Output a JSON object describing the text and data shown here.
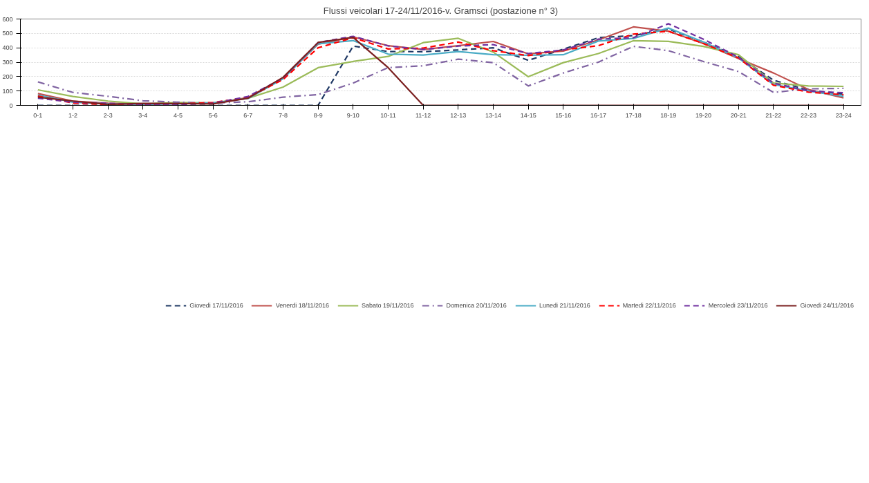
{
  "chart_data": {
    "type": "line",
    "title": "Flussi veicolari 17-24/11/2016-v. Gramsci (postazione n° 3)",
    "categories": [
      "0-1",
      "1-2",
      "2-3",
      "3-4",
      "4-5",
      "5-6",
      "6-7",
      "7-8",
      "8-9",
      "9-10",
      "10-11",
      "11-12",
      "12-13",
      "13-14",
      "14-15",
      "15-16",
      "16-17",
      "17-18",
      "18-19",
      "19-20",
      "20-21",
      "21-22",
      "22-23",
      "23-24"
    ],
    "ylim": [
      0,
      600
    ],
    "yticks": [
      0,
      100,
      200,
      300,
      400,
      500,
      600
    ],
    "grid": "y",
    "legend": "bottom",
    "marker": "none",
    "series": [
      {
        "name": "Giovedi 17/11/2016",
        "color": "#1f3864",
        "line_style": "dashed",
        "values": [
          0,
          0,
          0,
          0,
          0,
          0,
          0,
          0,
          0,
          412,
          374,
          373,
          385,
          400,
          313,
          390,
          470,
          485,
          530,
          440,
          340,
          175,
          105,
          78
        ]
      },
      {
        "name": "Venerdi 18/11/2016",
        "color": "#c0504d",
        "line_style": "solid",
        "values": [
          82,
          30,
          15,
          12,
          12,
          12,
          55,
          190,
          425,
          475,
          415,
          388,
          415,
          444,
          358,
          377,
          455,
          545,
          515,
          430,
          325,
          225,
          110,
          52
        ]
      },
      {
        "name": "Sabato 19/11/2016",
        "color": "#9bbb59",
        "line_style": "solid",
        "values": [
          108,
          62,
          30,
          10,
          20,
          18,
          50,
          127,
          262,
          305,
          340,
          436,
          466,
          370,
          199,
          297,
          360,
          449,
          445,
          410,
          352,
          155,
          135,
          132
        ]
      },
      {
        "name": "Domenica 20/11/2016",
        "color": "#8064a2",
        "line_style": "dashdot",
        "values": [
          163,
          90,
          63,
          32,
          22,
          16,
          25,
          57,
          75,
          155,
          262,
          275,
          321,
          297,
          135,
          225,
          300,
          410,
          380,
          305,
          235,
          90,
          115,
          118
        ]
      },
      {
        "name": "Lunedi 21/11/2016",
        "color": "#4bacc6",
        "line_style": "solid",
        "values": [
          72,
          22,
          10,
          7,
          10,
          18,
          48,
          185,
          428,
          450,
          356,
          350,
          374,
          352,
          348,
          352,
          447,
          465,
          537,
          440,
          330,
          145,
          100,
          63
        ]
      },
      {
        "name": "Martedi 22/11/2016",
        "color": "#ff0000",
        "line_style": "dashed",
        "values": [
          65,
          16,
          6,
          5,
          10,
          20,
          55,
          180,
          400,
          470,
          392,
          398,
          440,
          380,
          346,
          385,
          415,
          495,
          515,
          430,
          330,
          140,
          92,
          74
        ]
      },
      {
        "name": "Mercoledi 23/11/2016",
        "color": "#7030a0",
        "line_style": "dashed",
        "values": [
          50,
          22,
          15,
          3,
          5,
          15,
          62,
          190,
          437,
          480,
          413,
          388,
          412,
          422,
          360,
          385,
          460,
          470,
          567,
          460,
          335,
          155,
          100,
          88
        ]
      },
      {
        "name": "Giovedi 24/11/2016",
        "color": "#7b2020",
        "line_style": "solid",
        "values": [
          57,
          30,
          7,
          14,
          13,
          10,
          50,
          195,
          437,
          472,
          262,
          0,
          0,
          0,
          0,
          0,
          0,
          0,
          0,
          0,
          0,
          0,
          0,
          0
        ]
      }
    ]
  }
}
